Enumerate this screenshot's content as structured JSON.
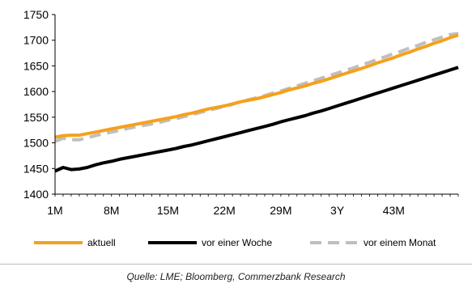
{
  "chart_data": {
    "type": "line",
    "title": "",
    "xlabel": "",
    "ylabel": "",
    "ylim": [
      1400,
      1750
    ],
    "yticks": [
      1400,
      1450,
      1500,
      1550,
      1600,
      1650,
      1700,
      1750
    ],
    "x_tick_labels": [
      "1M",
      "8M",
      "15M",
      "22M",
      "29M",
      "3Y",
      "43M"
    ],
    "grid": false,
    "legend_position": "bottom",
    "x": [
      "1M",
      "2M",
      "3M",
      "4M",
      "5M",
      "6M",
      "7M",
      "8M",
      "9M",
      "10M",
      "11M",
      "12M",
      "13M",
      "14M",
      "15M",
      "16M",
      "17M",
      "18M",
      "19M",
      "20M",
      "21M",
      "22M",
      "23M",
      "24M",
      "25M",
      "26M",
      "27M",
      "28M",
      "29M",
      "30M",
      "31M",
      "32M",
      "33M",
      "34M",
      "35M",
      "3Y",
      "37M",
      "38M",
      "39M",
      "40M",
      "41M",
      "42M",
      "43M",
      "44M",
      "45M",
      "46M",
      "47M",
      "48M",
      "49M",
      "50M",
      "51M"
    ],
    "series": [
      {
        "name": "aktuell",
        "color": "#f5a11c",
        "dash": "solid",
        "values": [
          1511,
          1514,
          1515,
          1515,
          1518,
          1521,
          1524,
          1527,
          1530,
          1533,
          1536,
          1539,
          1542,
          1545,
          1548,
          1551,
          1555,
          1558,
          1562,
          1566,
          1569,
          1572,
          1576,
          1580,
          1583,
          1586,
          1590,
          1594,
          1598,
          1603,
          1607,
          1611,
          1616,
          1620,
          1625,
          1630,
          1635,
          1640,
          1645,
          1650,
          1656,
          1661,
          1666,
          1672,
          1677,
          1683,
          1688,
          1694,
          1699,
          1705,
          1710
        ]
      },
      {
        "name": "vor einer Woche",
        "color": "#000000",
        "dash": "solid",
        "values": [
          1445,
          1452,
          1448,
          1449,
          1452,
          1457,
          1461,
          1464,
          1468,
          1471,
          1474,
          1477,
          1480,
          1483,
          1486,
          1489,
          1493,
          1496,
          1500,
          1504,
          1508,
          1512,
          1516,
          1520,
          1524,
          1528,
          1532,
          1536,
          1541,
          1545,
          1549,
          1553,
          1558,
          1562,
          1567,
          1572,
          1577,
          1582,
          1587,
          1592,
          1597,
          1602,
          1607,
          1612,
          1617,
          1622,
          1627,
          1632,
          1637,
          1642,
          1647
        ]
      },
      {
        "name": "vor einem Monat",
        "color": "#bfbfbf",
        "dash": "dashed",
        "values": [
          1503,
          1509,
          1506,
          1506,
          1510,
          1514,
          1518,
          1521,
          1524,
          1528,
          1531,
          1534,
          1537,
          1540,
          1544,
          1547,
          1551,
          1555,
          1559,
          1563,
          1567,
          1571,
          1575,
          1580,
          1584,
          1588,
          1592,
          1597,
          1601,
          1606,
          1611,
          1616,
          1621,
          1626,
          1631,
          1636,
          1641,
          1646,
          1652,
          1657,
          1663,
          1668,
          1674,
          1679,
          1685,
          1690,
          1696,
          1701,
          1706,
          1711,
          1713
        ]
      }
    ]
  },
  "source_text": "Quelle: LME; Bloomberg, Commerzbank Research"
}
